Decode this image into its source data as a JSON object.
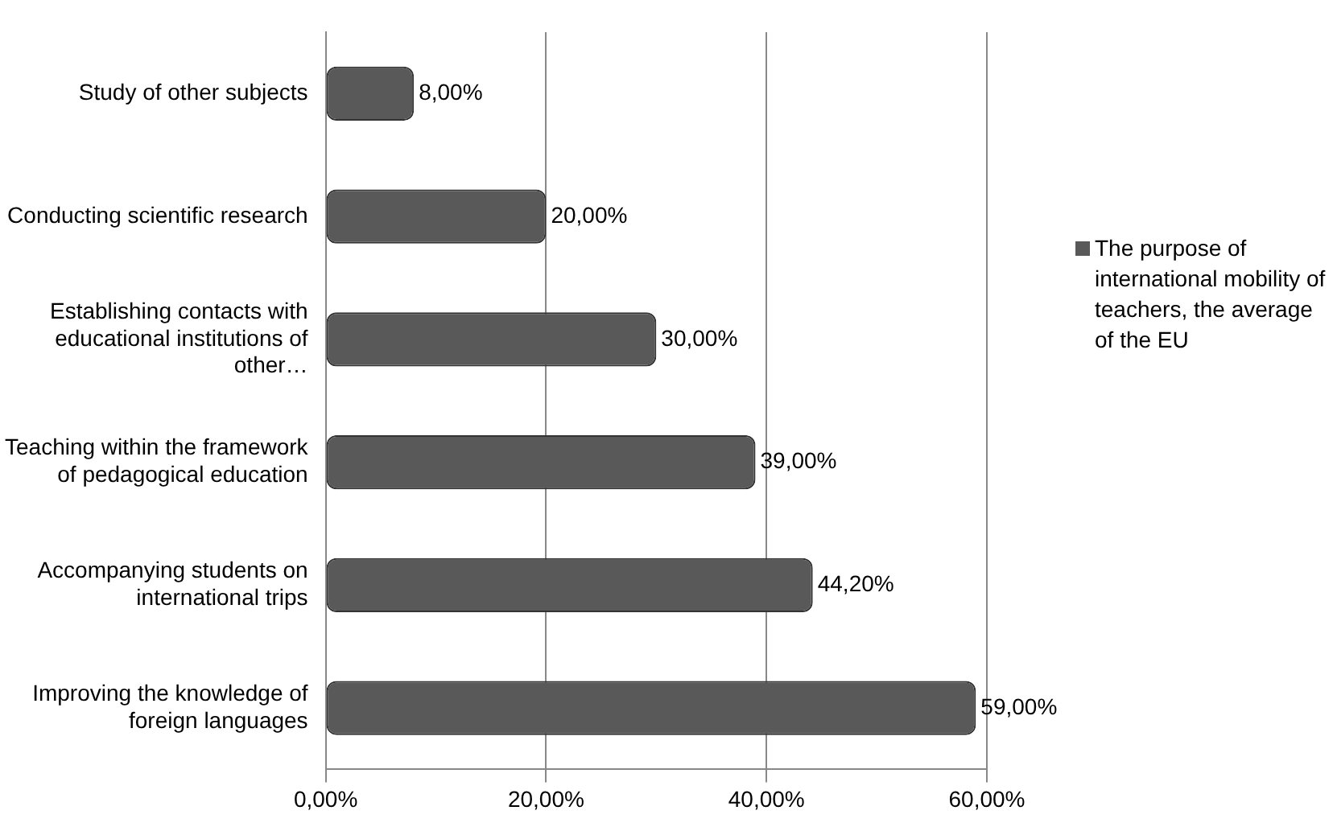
{
  "chart_data": {
    "type": "bar",
    "orientation": "horizontal",
    "categories": [
      "Study of other subjects",
      "Conducting scientific research",
      "Establishing contacts with educational institutions of other…",
      "Teaching within the framework of pedagogical education",
      "Accompanying students on international trips",
      "Improving the knowledge of foreign languages"
    ],
    "series": [
      {
        "name": "The purpose of international mobility of teachers, the average of the EU",
        "color": "#595959",
        "values": [
          8,
          20,
          30,
          39,
          44.2,
          59
        ],
        "value_labels": [
          "8,00%",
          "20,00%",
          "30,00%",
          "39,00%",
          "44,20%",
          "59,00%"
        ]
      }
    ],
    "xlim": [
      0,
      60
    ],
    "xticks": [
      {
        "value": 0,
        "label": "0,00%"
      },
      {
        "value": 20,
        "label": "20,00%"
      },
      {
        "value": 40,
        "label": "40,00%"
      },
      {
        "value": 60,
        "label": "60,00%"
      }
    ],
    "grid": "x",
    "legend": "right"
  }
}
